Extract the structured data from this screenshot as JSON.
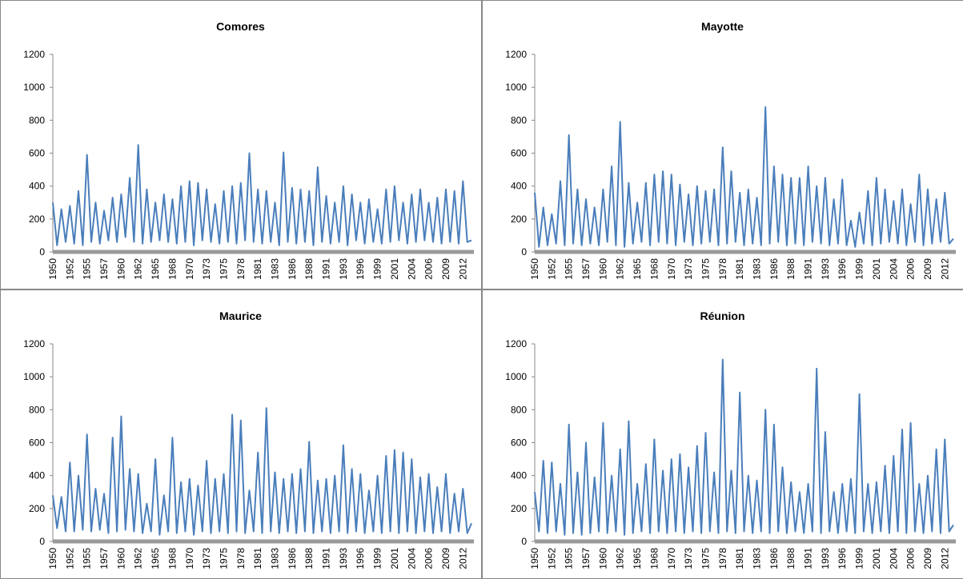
{
  "chart_data": [
    {
      "type": "line",
      "title": "Comores",
      "color": "#4a7ebb",
      "ylim": [
        0,
        1200
      ],
      "yticks": [
        0,
        200,
        400,
        600,
        800,
        1000,
        1200
      ],
      "categories": [
        "1950",
        null,
        null,
        null,
        "1952",
        null,
        null,
        null,
        "1955",
        null,
        null,
        null,
        "1957",
        null,
        null,
        null,
        "1960",
        null,
        null,
        null,
        "1962",
        null,
        null,
        null,
        "1965",
        null,
        null,
        null,
        "1968",
        null,
        null,
        null,
        "1970",
        null,
        null,
        null,
        "1973",
        null,
        null,
        null,
        "1975",
        null,
        null,
        null,
        "1978",
        null,
        null,
        null,
        "1981",
        null,
        null,
        null,
        "1983",
        null,
        null,
        null,
        "1986",
        null,
        null,
        null,
        "1988",
        null,
        null,
        null,
        "1991",
        null,
        null,
        null,
        "1993",
        null,
        null,
        null,
        "1996",
        null,
        null,
        null,
        "1999",
        null,
        null,
        null,
        "2001",
        null,
        null,
        null,
        "2004",
        null,
        null,
        null,
        "2006",
        null,
        null,
        null,
        "2009",
        null,
        null,
        null,
        "2012",
        null,
        null
      ],
      "values": [
        300,
        40,
        260,
        60,
        280,
        50,
        370,
        40,
        590,
        60,
        300,
        50,
        250,
        70,
        330,
        60,
        350,
        90,
        450,
        60,
        650,
        50,
        380,
        60,
        300,
        70,
        350,
        60,
        320,
        50,
        400,
        60,
        430,
        40,
        420,
        70,
        380,
        60,
        290,
        50,
        370,
        60,
        400,
        50,
        420,
        70,
        600,
        60,
        380,
        50,
        370,
        60,
        300,
        40,
        605,
        60,
        390,
        50,
        380,
        60,
        370,
        40,
        515,
        60,
        340,
        50,
        300,
        60,
        400,
        40,
        350,
        70,
        300,
        50,
        320,
        60,
        260,
        50,
        380,
        60,
        400,
        70,
        300,
        50,
        350,
        60,
        380,
        70,
        300,
        60,
        330,
        50,
        380,
        60,
        370,
        50,
        430,
        60,
        70
      ]
    },
    {
      "type": "line",
      "title": "Mayotte",
      "color": "#4a7ebb",
      "ylim": [
        0,
        1200
      ],
      "yticks": [
        0,
        200,
        400,
        600,
        800,
        1000,
        1200
      ],
      "categories": [
        "1950",
        null,
        null,
        null,
        "1952",
        null,
        null,
        null,
        "1955",
        null,
        null,
        null,
        "1957",
        null,
        null,
        null,
        "1960",
        null,
        null,
        null,
        "1962",
        null,
        null,
        null,
        "1965",
        null,
        null,
        null,
        "1968",
        null,
        null,
        null,
        "1970",
        null,
        null,
        null,
        "1973",
        null,
        null,
        null,
        "1975",
        null,
        null,
        null,
        "1978",
        null,
        null,
        null,
        "1981",
        null,
        null,
        null,
        "1983",
        null,
        null,
        null,
        "1986",
        null,
        null,
        null,
        "1988",
        null,
        null,
        null,
        "1991",
        null,
        null,
        null,
        "1993",
        null,
        null,
        null,
        "1996",
        null,
        null,
        null,
        "1999",
        null,
        null,
        null,
        "2001",
        null,
        null,
        null,
        "2004",
        null,
        null,
        null,
        "2006",
        null,
        null,
        null,
        "2009",
        null,
        null,
        null,
        "2012",
        null,
        null
      ],
      "values": [
        360,
        30,
        270,
        40,
        230,
        50,
        430,
        40,
        710,
        50,
        380,
        40,
        320,
        50,
        270,
        40,
        380,
        60,
        520,
        40,
        790,
        30,
        420,
        50,
        300,
        60,
        420,
        40,
        470,
        60,
        490,
        50,
        470,
        40,
        410,
        60,
        350,
        40,
        400,
        50,
        370,
        60,
        380,
        40,
        635,
        50,
        490,
        60,
        360,
        40,
        380,
        50,
        330,
        40,
        880,
        50,
        520,
        60,
        470,
        40,
        450,
        50,
        450,
        40,
        520,
        60,
        400,
        50,
        450,
        40,
        320,
        50,
        440,
        40,
        190,
        30,
        240,
        50,
        370,
        40,
        450,
        50,
        380,
        60,
        310,
        50,
        380,
        40,
        290,
        60,
        470,
        40,
        380,
        50,
        320,
        60,
        360,
        50,
        80
      ]
    },
    {
      "type": "line",
      "title": "Maurice",
      "color": "#4a7ebb",
      "ylim": [
        0,
        1200
      ],
      "yticks": [
        0,
        200,
        400,
        600,
        800,
        1000,
        1200
      ],
      "categories": [
        "1950",
        null,
        null,
        null,
        "1952",
        null,
        null,
        null,
        "1955",
        null,
        null,
        null,
        "1957",
        null,
        null,
        null,
        "1960",
        null,
        null,
        null,
        "1962",
        null,
        null,
        null,
        "1965",
        null,
        null,
        null,
        "1968",
        null,
        null,
        null,
        "1970",
        null,
        null,
        null,
        "1973",
        null,
        null,
        null,
        "1975",
        null,
        null,
        null,
        "1978",
        null,
        null,
        null,
        "1981",
        null,
        null,
        null,
        "1983",
        null,
        null,
        null,
        "1986",
        null,
        null,
        null,
        "1988",
        null,
        null,
        null,
        "1991",
        null,
        null,
        null,
        "1993",
        null,
        null,
        null,
        "1996",
        null,
        null,
        null,
        "1999",
        null,
        null,
        null,
        "2001",
        null,
        null,
        null,
        "2004",
        null,
        null,
        null,
        "2006",
        null,
        null,
        null,
        "2009",
        null,
        null,
        null,
        "2012",
        null,
        null
      ],
      "values": [
        280,
        80,
        270,
        60,
        480,
        60,
        400,
        70,
        650,
        60,
        320,
        70,
        290,
        50,
        630,
        60,
        760,
        70,
        440,
        60,
        410,
        50,
        230,
        60,
        500,
        40,
        280,
        60,
        630,
        50,
        360,
        60,
        380,
        40,
        340,
        60,
        490,
        50,
        380,
        60,
        410,
        50,
        770,
        60,
        735,
        50,
        310,
        60,
        540,
        50,
        810,
        60,
        420,
        50,
        380,
        60,
        410,
        50,
        440,
        60,
        605,
        50,
        370,
        60,
        380,
        50,
        400,
        60,
        585,
        50,
        440,
        60,
        410,
        50,
        310,
        60,
        400,
        50,
        520,
        60,
        555,
        50,
        540,
        60,
        500,
        50,
        390,
        60,
        410,
        50,
        330,
        60,
        410,
        50,
        290,
        60,
        320,
        50,
        110
      ]
    },
    {
      "type": "line",
      "title": "Réunion",
      "color": "#4a7ebb",
      "ylim": [
        0,
        1200
      ],
      "yticks": [
        0,
        200,
        400,
        600,
        800,
        1000,
        1200
      ],
      "categories": [
        "1950",
        null,
        null,
        null,
        "1952",
        null,
        null,
        null,
        "1955",
        null,
        null,
        null,
        "1957",
        null,
        null,
        null,
        "1960",
        null,
        null,
        null,
        "1962",
        null,
        null,
        null,
        "1965",
        null,
        null,
        null,
        "1968",
        null,
        null,
        null,
        "1970",
        null,
        null,
        null,
        "1973",
        null,
        null,
        null,
        "1975",
        null,
        null,
        null,
        "1978",
        null,
        null,
        null,
        "1981",
        null,
        null,
        null,
        "1983",
        null,
        null,
        null,
        "1986",
        null,
        null,
        null,
        "1988",
        null,
        null,
        null,
        "1991",
        null,
        null,
        null,
        "1993",
        null,
        null,
        null,
        "1996",
        null,
        null,
        null,
        "1999",
        null,
        null,
        null,
        "2001",
        null,
        null,
        null,
        "2004",
        null,
        null,
        null,
        "2006",
        null,
        null,
        null,
        "2009",
        null,
        null,
        null,
        "2012",
        null,
        null
      ],
      "values": [
        300,
        60,
        490,
        50,
        480,
        60,
        350,
        40,
        710,
        50,
        420,
        40,
        600,
        50,
        390,
        60,
        720,
        50,
        400,
        60,
        560,
        40,
        730,
        50,
        350,
        60,
        470,
        50,
        620,
        60,
        430,
        50,
        500,
        60,
        530,
        50,
        450,
        60,
        580,
        50,
        660,
        60,
        420,
        50,
        1105,
        60,
        430,
        50,
        905,
        60,
        400,
        50,
        370,
        60,
        800,
        50,
        710,
        60,
        450,
        50,
        360,
        60,
        300,
        50,
        350,
        60,
        1050,
        50,
        665,
        60,
        300,
        50,
        350,
        60,
        380,
        50,
        895,
        60,
        350,
        50,
        360,
        60,
        460,
        50,
        520,
        60,
        680,
        50,
        720,
        60,
        350,
        50,
        400,
        60,
        560,
        50,
        620,
        60,
        100
      ]
    }
  ]
}
